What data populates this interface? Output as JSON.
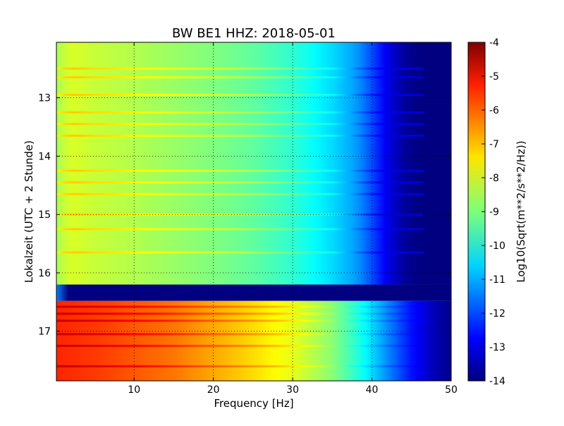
{
  "chart_data": {
    "type": "heatmap",
    "title": "BW BE1 HHZ: 2018-05-01",
    "xlabel": "Frequency [Hz]",
    "ylabel": "Lokalzeit (UTC + 2 Stunde)",
    "xlim": [
      0.2,
      50
    ],
    "ylim": [
      12.05,
      17.85
    ],
    "y_inverted": true,
    "x_ticks": [
      "10",
      "20",
      "30",
      "40",
      "50"
    ],
    "y_ticks": [
      "13",
      "14",
      "15",
      "16",
      "17"
    ],
    "grid": true,
    "colormap": "jet",
    "colorbar": {
      "label": "Log10(Sqrt(m**2/s**2/Hz))",
      "range": [
        -14,
        -4
      ],
      "ticks": [
        "-4",
        "-5",
        "-6",
        "-7",
        "-8",
        "-9",
        "-10",
        "-11",
        "-12",
        "-13",
        "-14"
      ]
    },
    "regions": [
      {
        "time_range": [
          12.05,
          16.2
        ],
        "value_profile_freq": [
          0.2,
          2,
          5,
          10,
          20,
          25,
          30,
          35,
          38,
          40,
          42,
          44,
          46,
          50
        ],
        "value_profile_level": [
          -8.6,
          -8.1,
          -8.3,
          -8.5,
          -9.0,
          -9.3,
          -9.8,
          -10.6,
          -11.2,
          -12.0,
          -13.0,
          -13.7,
          -14,
          -14
        ],
        "bright_lines_at_time": [
          12.5,
          12.65,
          12.95,
          13.25,
          13.45,
          13.65,
          14.25,
          14.45,
          14.65,
          15.0,
          15.25,
          15.65
        ]
      },
      {
        "time_range": [
          16.2,
          16.48
        ],
        "level_low_freq": -11.5,
        "level": -14
      },
      {
        "time_range": [
          16.48,
          17.85
        ],
        "value_profile_freq": [
          0.2,
          5,
          10,
          15,
          20,
          25,
          30,
          35,
          38,
          40,
          42,
          45,
          48,
          50
        ],
        "value_profile_level": [
          -5.6,
          -5.8,
          -6.1,
          -6.4,
          -6.9,
          -7.4,
          -8.0,
          -8.9,
          -9.8,
          -10.6,
          -11.4,
          -12.6,
          -13.5,
          -13.9
        ],
        "bright_lines_at_time": [
          16.58,
          16.7,
          16.82,
          17.05,
          17.25,
          17.6
        ]
      }
    ]
  }
}
